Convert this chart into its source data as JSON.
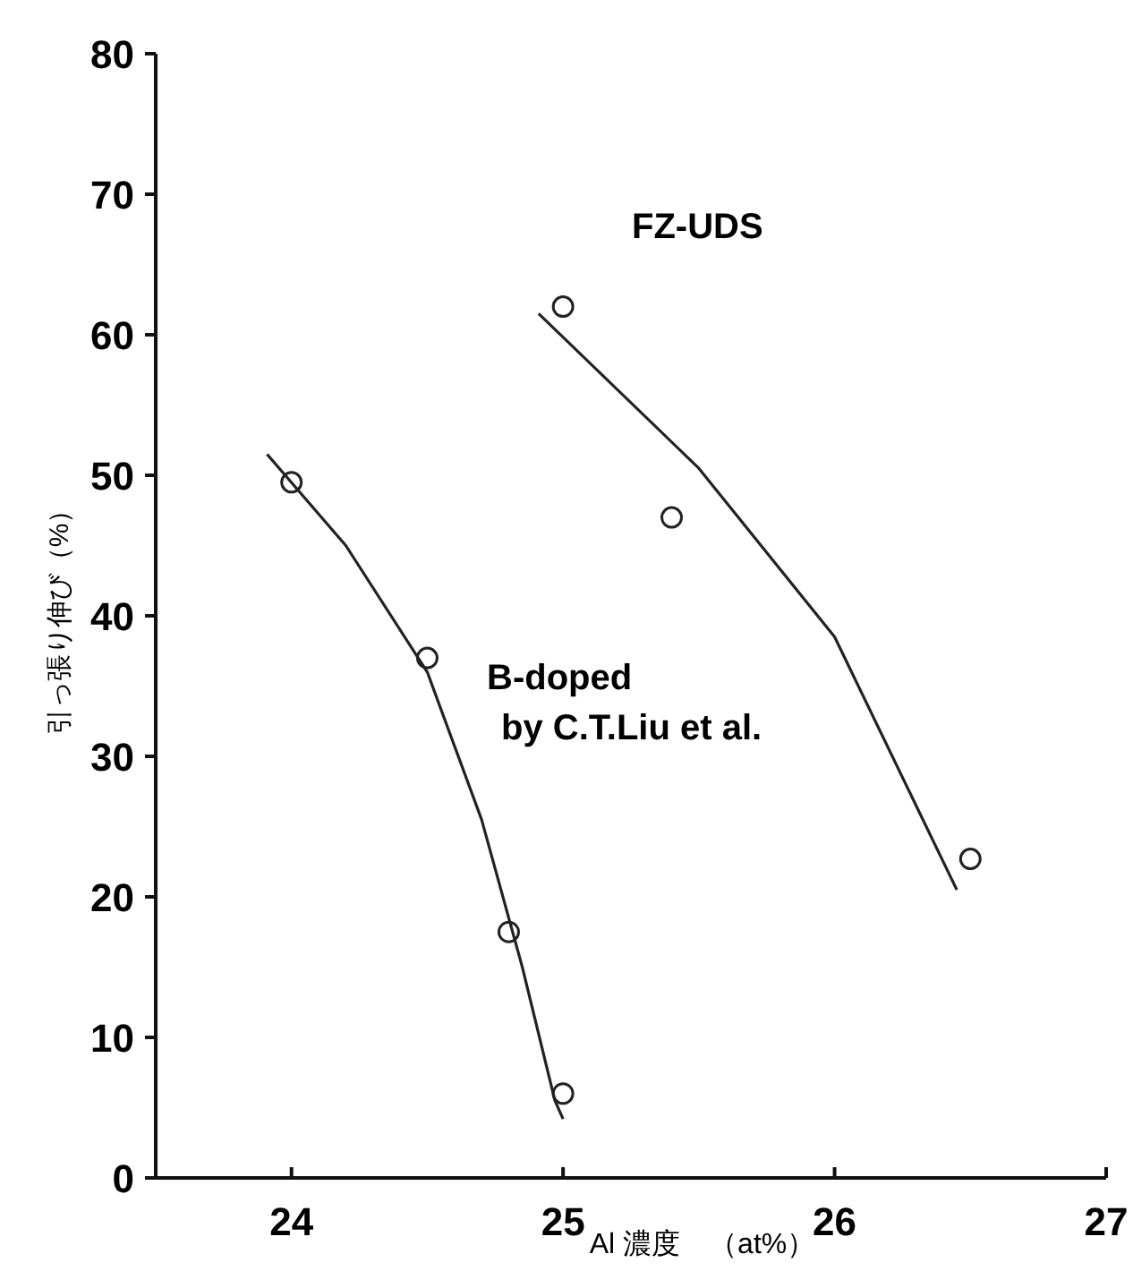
{
  "chart_data": {
    "type": "scatter",
    "xlabel": "Al 濃度　（at%）",
    "ylabel": "引っ張り伸び（%）",
    "xlim": [
      23.5,
      27
    ],
    "xticks": [
      24,
      25,
      26,
      27
    ],
    "ylim": [
      0,
      80
    ],
    "yticks": [
      0,
      10,
      20,
      30,
      40,
      50,
      60,
      70,
      80
    ],
    "grid": false,
    "marker": "circle",
    "series": [
      {
        "color": "#222222",
        "x": [
          24,
          24.5,
          24.8,
          25
        ],
        "values": [
          49.5,
          37,
          17.5,
          6
        ]
      },
      {
        "color": "#222222",
        "x": [
          25,
          25.4,
          26.5
        ],
        "values": [
          62,
          47,
          22.7
        ]
      },
      {
        "type": "line",
        "color": "#222222",
        "marker": "none",
        "x": [
          23.91,
          24.2,
          24.5,
          24.7,
          24.85,
          24.97,
          25
        ],
        "values": [
          51.5,
          45,
          36,
          25.5,
          15,
          5.5,
          4.2
        ]
      },
      {
        "type": "line",
        "color": "#222222",
        "marker": "none",
        "x": [
          24.91,
          25.5,
          26,
          26.45
        ],
        "values": [
          61.5,
          50.5,
          38.5,
          20.5
        ]
      }
    ],
    "annotations": [
      "FZ-UDS",
      "B-doped\nby C.T.Liu et al."
    ]
  }
}
